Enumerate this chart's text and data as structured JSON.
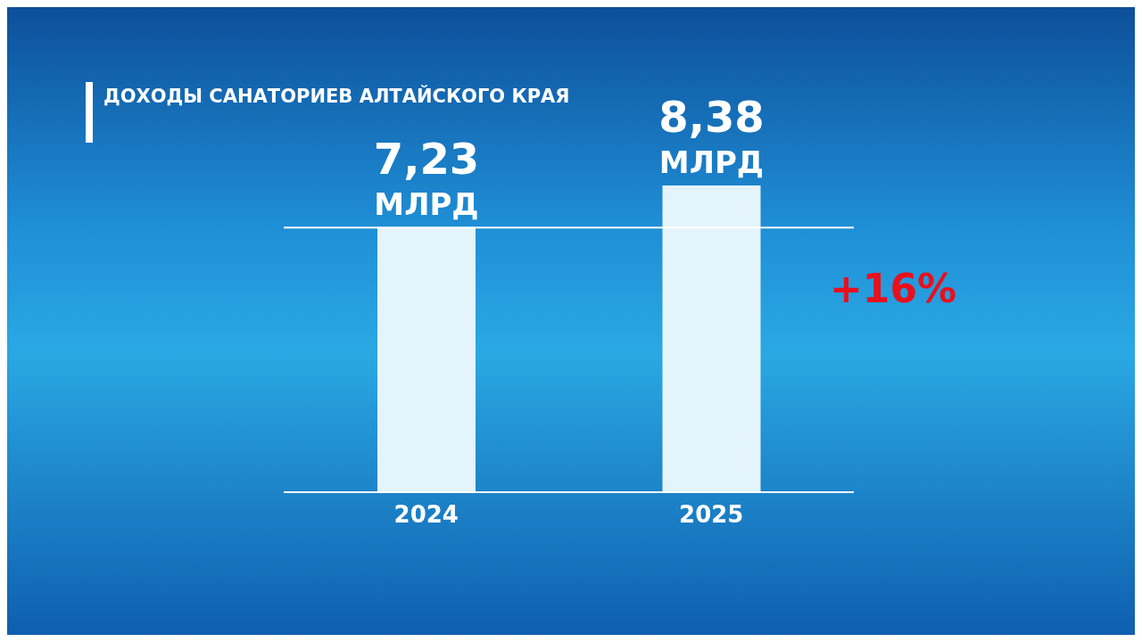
{
  "chart_data": {
    "type": "bar",
    "title": "ДОХОДЫ САНАТОРИЕВ АЛТАЙСКОГО КРАЯ",
    "categories": [
      "2024",
      "2025"
    ],
    "values": [
      7.23,
      8.38
    ],
    "value_labels": [
      "7,23 МЛРД",
      "8,38 МЛРД"
    ],
    "color": "#e4f4fb",
    "ref_lines": [
      {
        "axis": "y",
        "value": 7.23,
        "color": "#ffffff"
      }
    ],
    "annotations": [
      "+16%"
    ]
  }
}
